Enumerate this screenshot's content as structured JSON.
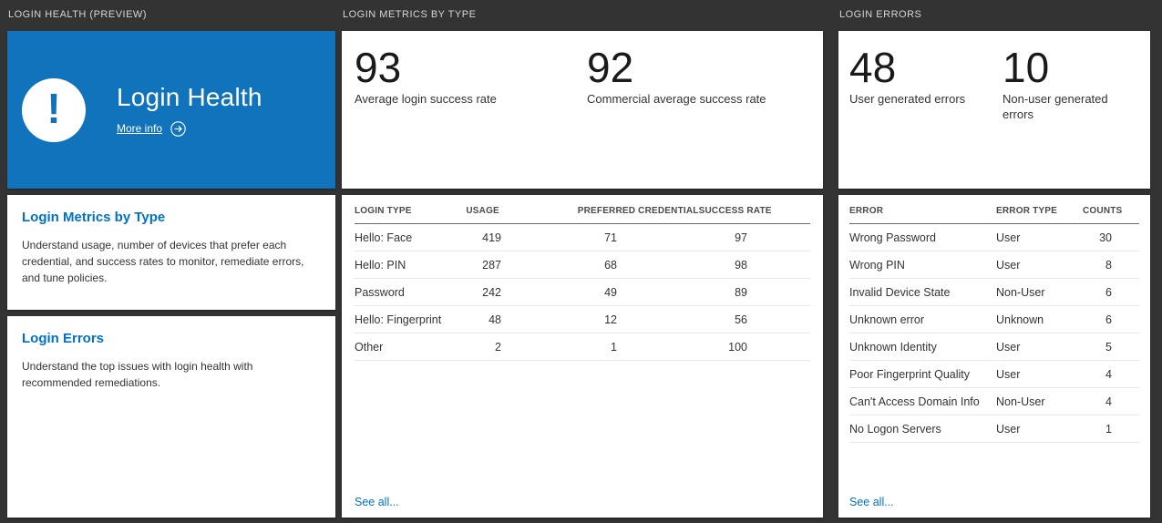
{
  "colors": {
    "page_bg": "#333333",
    "card_bg": "#ffffff",
    "hero_bg": "#1173bc",
    "accent": "#0072c6"
  },
  "icons": {
    "alert_glyph": "!"
  },
  "login_health": {
    "section_header": "LOGIN HEALTH (PREVIEW)",
    "hero": {
      "title": "Login Health",
      "more_info_label": "More info"
    },
    "nav_cards": [
      {
        "title": "Login Metrics by Type",
        "description": "Understand usage, number of devices that prefer each credential, and success rates to monitor, remediate errors, and tune policies."
      },
      {
        "title": "Login Errors",
        "description": "Understand the top issues with login health with recommended remediations."
      }
    ]
  },
  "login_metrics": {
    "section_header": "LOGIN METRICS BY TYPE",
    "stats": [
      {
        "value": "93",
        "label": "Average login success rate"
      },
      {
        "value": "92",
        "label": "Commercial average success rate"
      }
    ],
    "table": {
      "columns": [
        "LOGIN TYPE",
        "USAGE",
        "PREFERRED CREDENTIAL",
        "SUCCESS RATE"
      ],
      "rows": [
        [
          "Hello: Face",
          "419",
          "71",
          "97"
        ],
        [
          "Hello: PIN",
          "287",
          "68",
          "98"
        ],
        [
          "Password",
          "242",
          "49",
          "89"
        ],
        [
          "Hello: Fingerprint",
          "48",
          "12",
          "56"
        ],
        [
          "Other",
          "2",
          "1",
          "100"
        ]
      ]
    },
    "see_all_label": "See all..."
  },
  "login_errors": {
    "section_header": "LOGIN ERRORS",
    "stats": [
      {
        "value": "48",
        "label": "User generated errors"
      },
      {
        "value": "10",
        "label": "Non-user generated errors"
      }
    ],
    "table": {
      "columns": [
        "ERROR",
        "ERROR TYPE",
        "COUNTS"
      ],
      "rows": [
        [
          "Wrong Password",
          "User",
          "30"
        ],
        [
          "Wrong PIN",
          "User",
          "8"
        ],
        [
          "Invalid Device State",
          "Non-User",
          "6"
        ],
        [
          "Unknown error",
          "Unknown",
          "6"
        ],
        [
          "Unknown Identity",
          "User",
          "5"
        ],
        [
          "Poor Fingerprint Quality",
          "User",
          "4"
        ],
        [
          "Can't Access Domain Info",
          "Non-User",
          "4"
        ],
        [
          "No Logon Servers",
          "User",
          "1"
        ]
      ]
    },
    "see_all_label": "See all..."
  }
}
